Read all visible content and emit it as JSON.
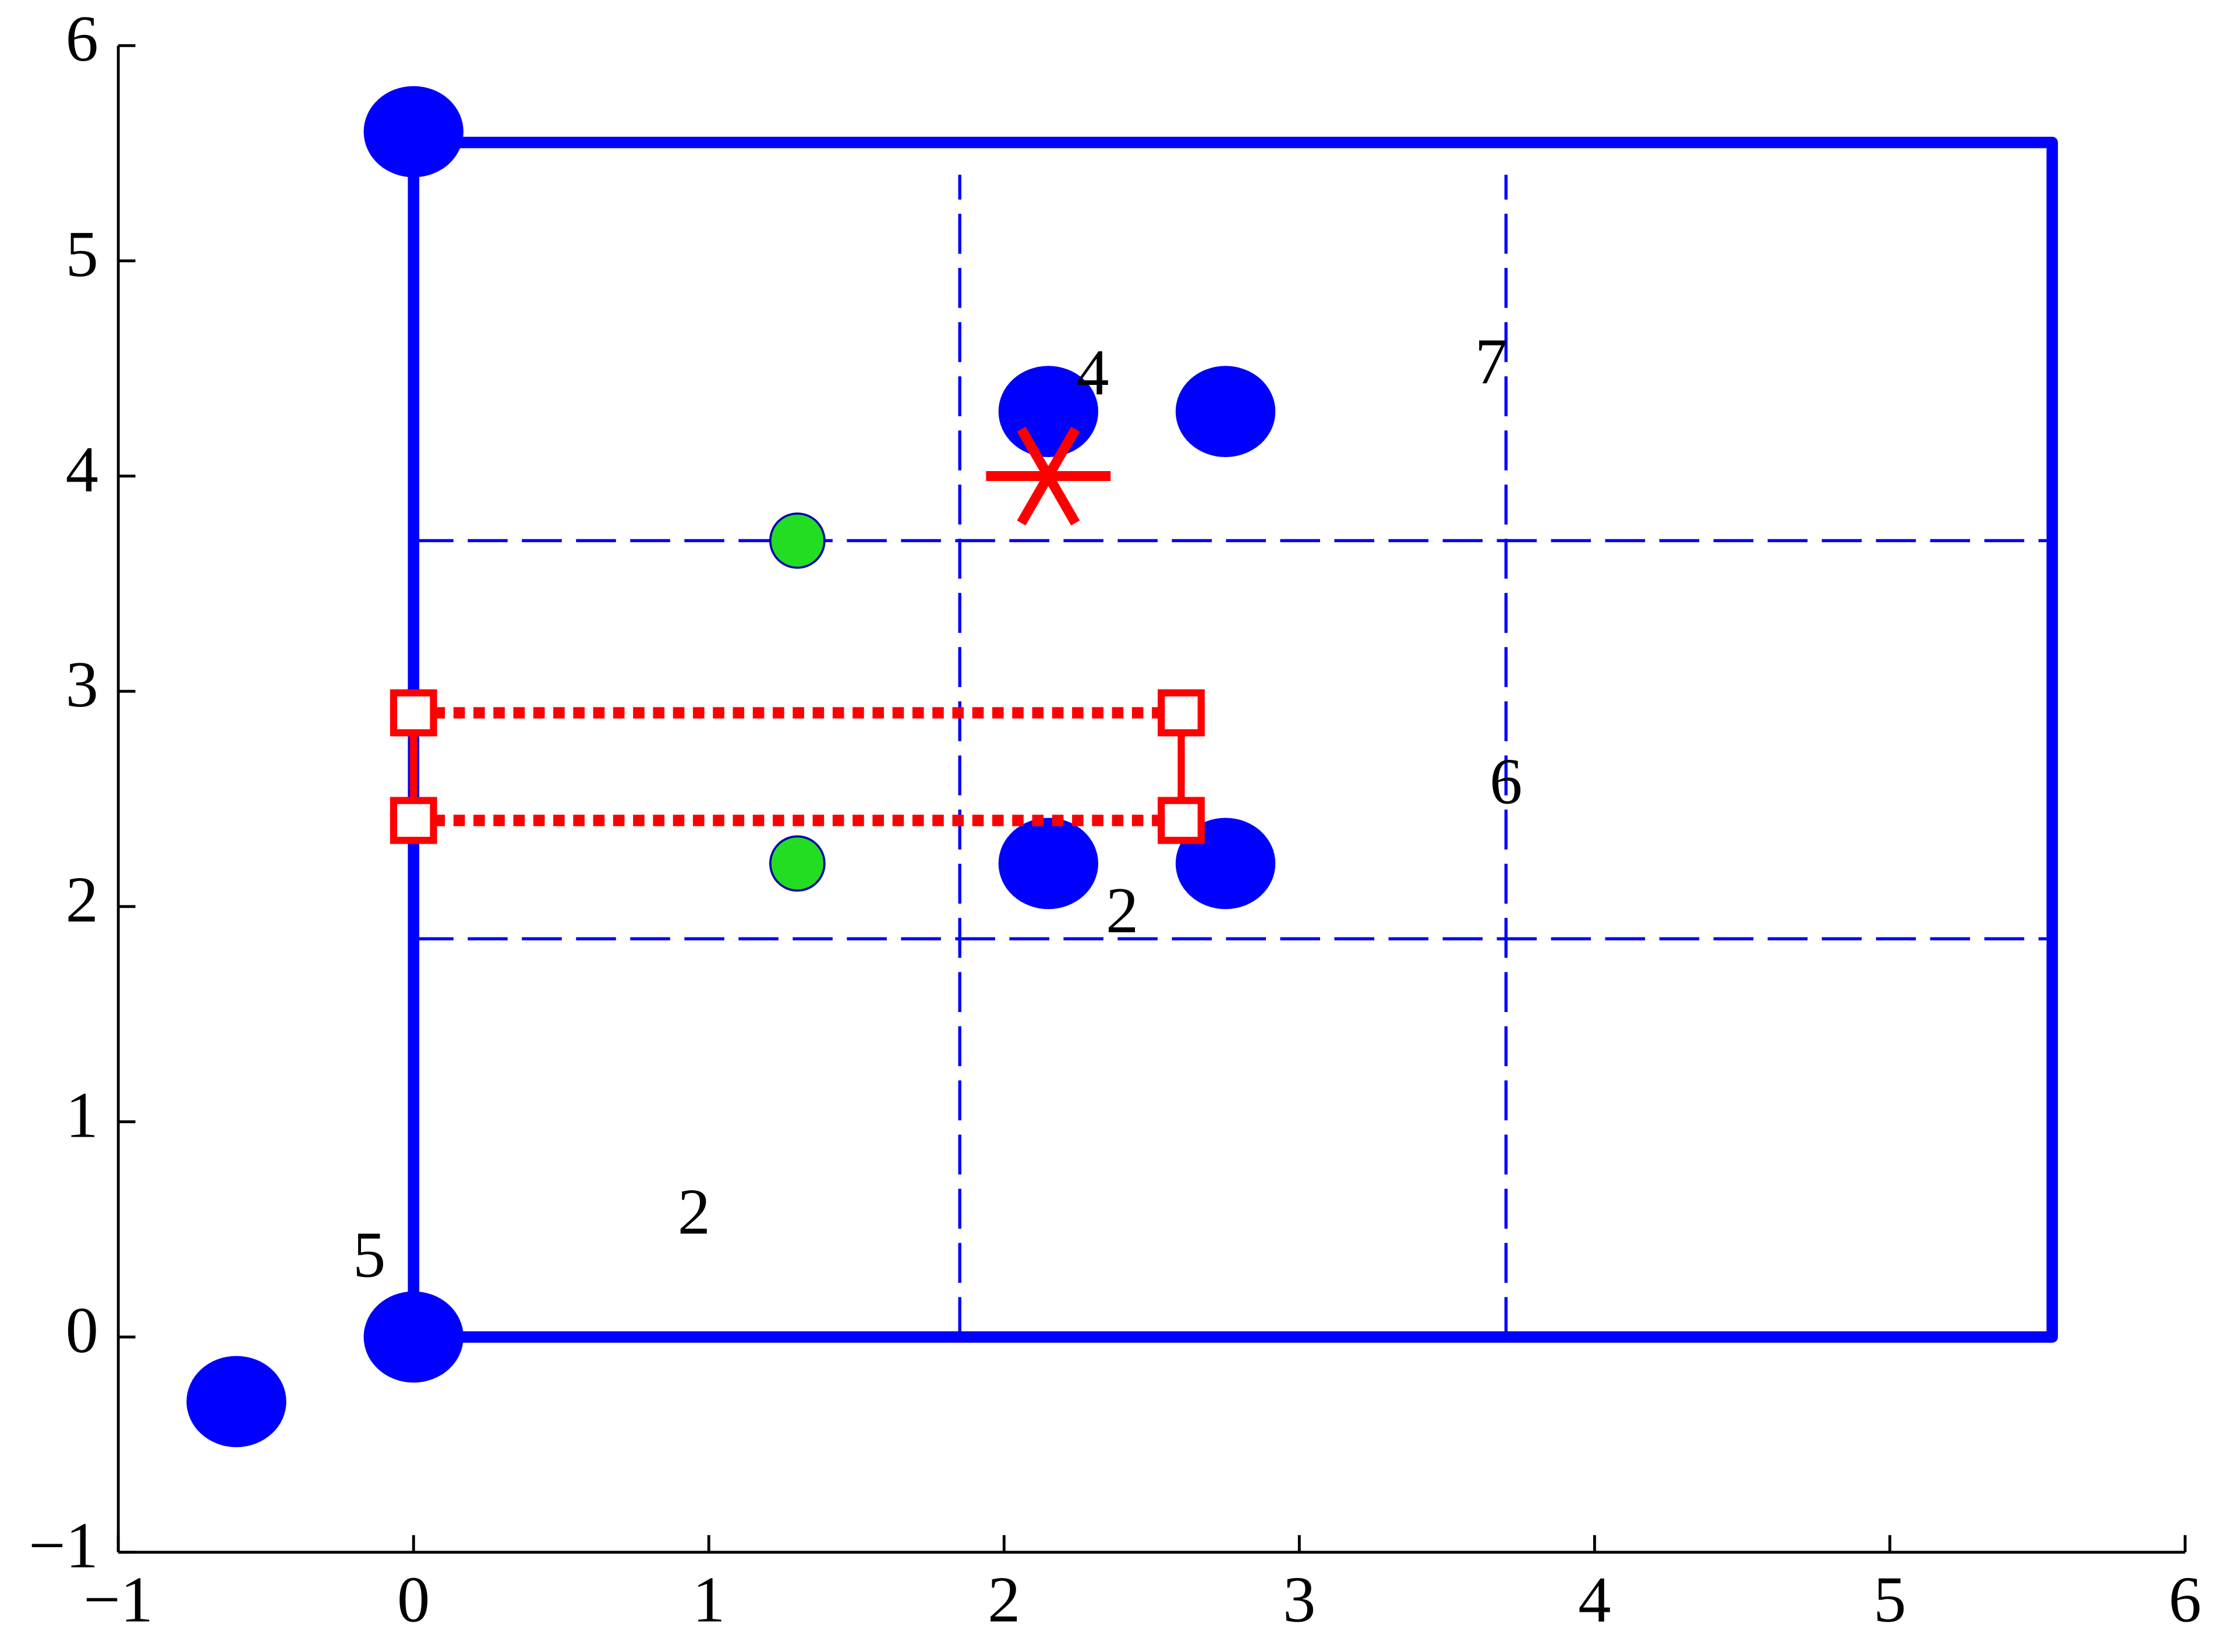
{
  "chart_data": {
    "type": "scatter",
    "xlim": [
      -1,
      6
    ],
    "ylim": [
      -1,
      6
    ],
    "xticks": [
      {
        "value": -1,
        "label": "−1"
      },
      0,
      1,
      2,
      3,
      4,
      5,
      6
    ],
    "yticks": [
      {
        "value": -1,
        "label": "−1"
      },
      0,
      1,
      2,
      3,
      4,
      5,
      6
    ],
    "grid": false,
    "series": [
      {
        "style": "line",
        "dash": "solid",
        "color": "#0000ff",
        "x": [
          0,
          0,
          5.55,
          5.55,
          0
        ],
        "values": [
          0,
          5.55,
          5.55,
          0,
          0
        ]
      },
      {
        "style": "line",
        "dash": "dashed",
        "color": "#0000ff",
        "x": [
          1.85,
          1.85,
          null,
          3.7,
          3.7,
          null,
          0,
          5.55,
          null,
          0,
          5.55
        ],
        "values": [
          0,
          5.4,
          null,
          0,
          5.4,
          null,
          1.85,
          1.85,
          null,
          3.7,
          3.7
        ]
      },
      {
        "style": "marker",
        "marker": "circle",
        "color": "#0000ff",
        "x": [
          0,
          0,
          -0.6,
          2.15,
          2.75,
          2.15,
          2.75
        ],
        "values": [
          5.6,
          0,
          -0.3,
          4.3,
          4.3,
          2.2,
          2.2
        ]
      },
      {
        "style": "marker",
        "marker": "small-circle",
        "color": "#22dd22",
        "x": [
          1.3,
          1.3
        ],
        "values": [
          3.7,
          2.2
        ]
      },
      {
        "style": "line",
        "dash": "dotted",
        "color": "#ff0000",
        "x": [
          0,
          2.6,
          null,
          0,
          2.6
        ],
        "values": [
          2.9,
          2.9,
          null,
          2.4,
          2.4
        ]
      },
      {
        "style": "line",
        "dash": "solid-thin",
        "color": "#ff0000",
        "x": [
          0,
          0,
          null,
          2.6,
          2.6
        ],
        "values": [
          2.9,
          2.4,
          null,
          2.9,
          2.4
        ]
      },
      {
        "style": "marker",
        "marker": "square",
        "color": "#ff0000",
        "x": [
          0,
          2.6,
          0,
          2.6
        ],
        "values": [
          2.9,
          2.9,
          2.4,
          2.4
        ]
      },
      {
        "style": "marker",
        "marker": "star",
        "color": "#ff0000",
        "x": [
          2.15
        ],
        "values": [
          4.0
        ]
      }
    ],
    "annotations": [
      {
        "text": "4",
        "x": 2.3,
        "y": 4.45
      },
      {
        "text": "7",
        "x": 3.65,
        "y": 4.5
      },
      {
        "text": "6",
        "x": 3.7,
        "y": 2.55
      },
      {
        "text": "2",
        "x": 2.4,
        "y": 1.95
      },
      {
        "text": "2",
        "x": 0.95,
        "y": 0.55
      },
      {
        "text": "5",
        "x": -0.15,
        "y": 0.35
      }
    ]
  }
}
